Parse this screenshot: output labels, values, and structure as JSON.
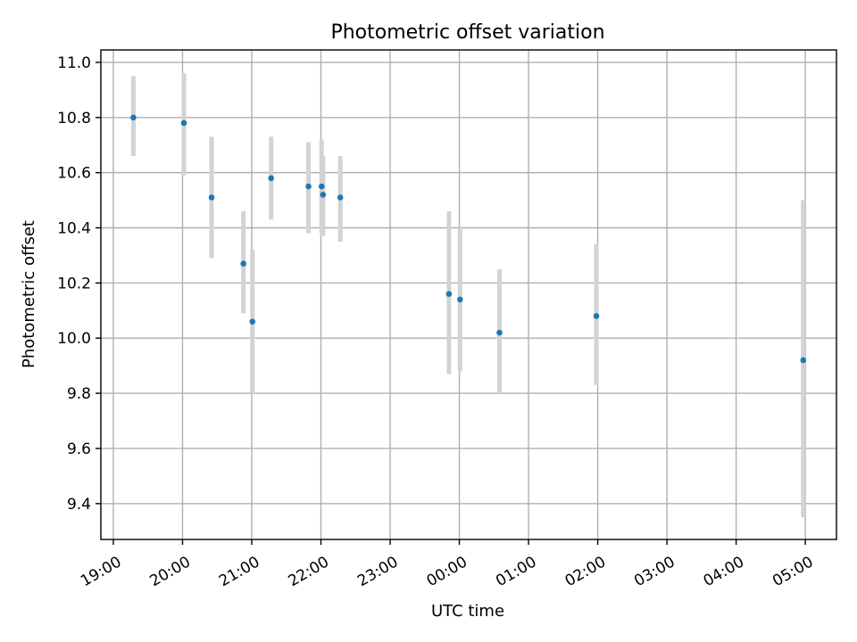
{
  "chart_data": {
    "type": "scatter",
    "title": "Photometric offset variation",
    "xlabel": "UTC time",
    "ylabel": "Photometric offset",
    "x_unit": "hours since 19:00 UTC",
    "xlim": [
      -0.18,
      10.45
    ],
    "ylim": [
      9.27,
      11.045
    ],
    "grid": true,
    "error_bar_color": "#d3d3d3",
    "marker_color": "#1f77b4",
    "x_ticks": [
      {
        "value": 0,
        "label": "19:00"
      },
      {
        "value": 1,
        "label": "20:00"
      },
      {
        "value": 2,
        "label": "21:00"
      },
      {
        "value": 3,
        "label": "22:00"
      },
      {
        "value": 4,
        "label": "23:00"
      },
      {
        "value": 5,
        "label": "00:00"
      },
      {
        "value": 6,
        "label": "01:00"
      },
      {
        "value": 7,
        "label": "02:00"
      },
      {
        "value": 8,
        "label": "03:00"
      },
      {
        "value": 9,
        "label": "04:00"
      },
      {
        "value": 10,
        "label": "05:00"
      }
    ],
    "y_ticks": [
      {
        "value": 9.4,
        "label": "9.4"
      },
      {
        "value": 9.6,
        "label": "9.6"
      },
      {
        "value": 9.8,
        "label": "9.8"
      },
      {
        "value": 10.0,
        "label": "10.0"
      },
      {
        "value": 10.2,
        "label": "10.2"
      },
      {
        "value": 10.4,
        "label": "10.4"
      },
      {
        "value": 10.6,
        "label": "10.6"
      },
      {
        "value": 10.8,
        "label": "10.8"
      },
      {
        "value": 11.0,
        "label": "11.0"
      }
    ],
    "points": [
      {
        "x": 0.29,
        "y": 10.8,
        "err_low": 10.66,
        "err_high": 10.95
      },
      {
        "x": 1.02,
        "y": 10.78,
        "err_low": 10.59,
        "err_high": 10.96
      },
      {
        "x": 1.42,
        "y": 10.51,
        "err_low": 10.29,
        "err_high": 10.73
      },
      {
        "x": 1.88,
        "y": 10.27,
        "err_low": 10.09,
        "err_high": 10.46
      },
      {
        "x": 2.01,
        "y": 10.06,
        "err_low": 9.8,
        "err_high": 10.32
      },
      {
        "x": 2.28,
        "y": 10.58,
        "err_low": 10.43,
        "err_high": 10.73
      },
      {
        "x": 2.82,
        "y": 10.55,
        "err_low": 10.38,
        "err_high": 10.71
      },
      {
        "x": 3.01,
        "y": 10.55,
        "err_low": 10.38,
        "err_high": 10.72
      },
      {
        "x": 3.03,
        "y": 10.52,
        "err_low": 10.37,
        "err_high": 10.66
      },
      {
        "x": 3.28,
        "y": 10.51,
        "err_low": 10.35,
        "err_high": 10.66
      },
      {
        "x": 4.85,
        "y": 10.16,
        "err_low": 9.87,
        "err_high": 10.46
      },
      {
        "x": 5.01,
        "y": 10.14,
        "err_low": 9.88,
        "err_high": 10.4
      },
      {
        "x": 5.58,
        "y": 10.02,
        "err_low": 9.8,
        "err_high": 10.25
      },
      {
        "x": 6.98,
        "y": 10.08,
        "err_low": 9.83,
        "err_high": 10.34
      },
      {
        "x": 9.97,
        "y": 9.92,
        "err_low": 9.35,
        "err_high": 10.5
      }
    ]
  }
}
